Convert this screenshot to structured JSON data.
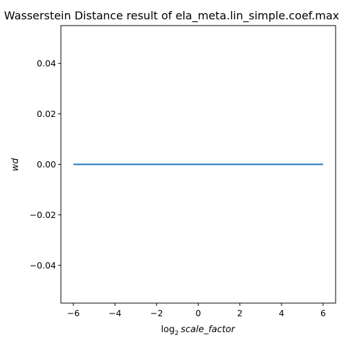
{
  "chart_data": {
    "type": "line",
    "title": "Wasserstein Distance result of ela_meta.lin_simple.coef.max",
    "xlabel_prefix": "log",
    "xlabel_subscript": "2",
    "xlabel_var": "scale_factor",
    "ylabel": "wd",
    "xlim": [
      -6.6,
      6.6
    ],
    "ylim": [
      -0.055,
      0.055
    ],
    "x_ticks": [
      -6,
      -4,
      -2,
      0,
      2,
      4,
      6
    ],
    "x_tick_labels": [
      "−6",
      "−4",
      "−2",
      "0",
      "2",
      "4",
      "6"
    ],
    "y_ticks": [
      -0.04,
      -0.02,
      0.0,
      0.02,
      0.04
    ],
    "y_tick_labels": [
      "−0.04",
      "−0.02",
      "0.00",
      "0.02",
      "0.04"
    ],
    "grid": false,
    "series": [
      {
        "color": "#1f77b4",
        "x": [
          -6,
          -5,
          -4,
          -3,
          -2,
          -1,
          0,
          1,
          2,
          3,
          4,
          5,
          6
        ],
        "y": [
          0,
          0,
          0,
          0,
          0,
          0,
          0,
          0,
          0,
          0,
          0,
          0,
          0
        ]
      }
    ]
  }
}
